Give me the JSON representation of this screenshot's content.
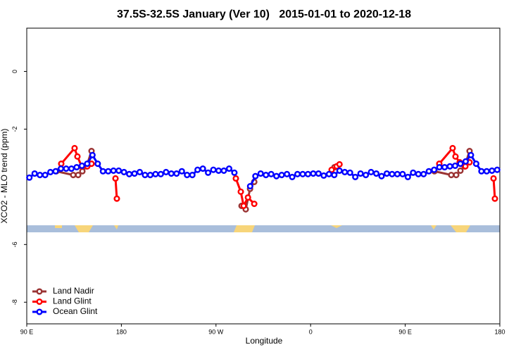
{
  "chart_data": {
    "type": "line",
    "title": "37.5S-32.5S January (Ver 10)   2015-01-01 to 2020-12-18",
    "xlabel": "Longitude",
    "ylabel": "XCO2 - MLO trend (ppm)",
    "xlim": [
      90,
      540
    ],
    "ylim": [
      -8.75,
      1.5
    ],
    "xticks": [
      {
        "value": 90,
        "label": "90 E"
      },
      180,
      {
        "value": 270,
        "label": "90 W"
      },
      {
        "value": 360,
        "label": "0"
      },
      {
        "value": 450,
        "label": "90 E"
      },
      {
        "value": 540,
        "label": "180"
      }
    ],
    "yticks": [
      0,
      -2,
      -6,
      -8
    ],
    "legend": "bottom-left",
    "series": [
      {
        "name": "Land Nadir",
        "color": "#9b3434",
        "x": [
          118.1,
          134.2,
          138.9,
          142.9,
          146.9,
          151.6,
          null,
          294.3,
          298.3,
          302.4,
          306.4,
          null,
          382.7,
          null,
          477.8,
          493.8,
          498.5,
          502.5,
          506.5,
          511.2
        ],
        "values": [
          -3.46,
          -3.59,
          -3.59,
          -3.46,
          -3.29,
          -2.76,
          null,
          -4.66,
          -4.78,
          -4.07,
          -3.83,
          null,
          -3.32,
          null,
          -3.46,
          -3.59,
          -3.59,
          -3.44,
          -3.29,
          -2.76
        ]
      },
      {
        "name": "Land Glint",
        "color": "#ff0000",
        "x": [
          122.8,
          135.5,
          138.2,
          142.2,
          147.6,
          151.6,
          null,
          174.4,
          175.7,
          null,
          288.9,
          293.6,
          296.3,
          300.4,
          306.4,
          null,
          380,
          384.8,
          387.5,
          null,
          482.4,
          495.1,
          497.8,
          501.8,
          507.2,
          511.2,
          null,
          534,
          535.3
        ],
        "values": [
          -3.2,
          -2.66,
          -2.95,
          -3.29,
          -3.29,
          -3.2,
          null,
          -3.71,
          -4.41,
          null,
          -3.71,
          -4.17,
          -4.66,
          -4.37,
          -4.59,
          null,
          -3.41,
          -3.29,
          -3.22,
          null,
          -3.2,
          -2.66,
          -2.95,
          -3.15,
          -3.29,
          -3.15,
          null,
          -3.71,
          -4.41
        ]
      },
      {
        "name": "Ocean Glint",
        "color": "#0000ff",
        "x": [
          92.5,
          97.5,
          102.5,
          107.5,
          112.5,
          117.5,
          122.5,
          127.5,
          132.5,
          137.5,
          142.5,
          147.5,
          152.5,
          157.5,
          162.5,
          167.5,
          172.5,
          177.5,
          182.5,
          187.5,
          192.5,
          197.5,
          202.5,
          207.5,
          212.5,
          217.5,
          222.5,
          227.5,
          232.5,
          237.5,
          242.5,
          247.5,
          252.5,
          257.5,
          262.5,
          267.5,
          272.5,
          277.5,
          282.5,
          287.5,
          292.5,
          297.5,
          302.5,
          307.5,
          312.5,
          317.5,
          322.5,
          327.5,
          332.5,
          337.5,
          342.5,
          347.5,
          352.5,
          357.5,
          362.5,
          367.5,
          372.5,
          377.5,
          382.5,
          387.5,
          392.5,
          397.5,
          402.5,
          407.5,
          412.5,
          417.5,
          422.5,
          427.5,
          432.5,
          437.5,
          442.5,
          447.5,
          452.5,
          457.5,
          462.5,
          467.5,
          472.5,
          477.5,
          482.5,
          487.5,
          492.5,
          497.5,
          502.5,
          507.5,
          512.5,
          517.5,
          522.5,
          527.5,
          532.5,
          537.5
        ],
        "values": [
          -3.68,
          -3.54,
          -3.59,
          -3.59,
          -3.49,
          -3.46,
          -3.37,
          -3.37,
          -3.37,
          -3.32,
          -3.27,
          -3.2,
          -2.9,
          -3.2,
          -3.46,
          -3.46,
          -3.44,
          -3.44,
          -3.49,
          -3.56,
          -3.54,
          -3.49,
          -3.59,
          -3.59,
          -3.56,
          -3.56,
          -3.49,
          -3.54,
          -3.54,
          -3.46,
          -3.59,
          -3.59,
          -3.41,
          -3.37,
          -3.51,
          -3.41,
          -3.44,
          -3.44,
          -3.37,
          -3.51,
          null,
          null,
          -3.98,
          -3.63,
          -3.54,
          -3.59,
          -3.56,
          -3.63,
          -3.59,
          -3.56,
          -3.66,
          -3.56,
          -3.56,
          -3.56,
          -3.54,
          -3.54,
          -3.61,
          -3.56,
          -3.59,
          -3.44,
          -3.49,
          -3.51,
          -3.66,
          -3.54,
          -3.59,
          -3.49,
          -3.54,
          -3.63,
          -3.54,
          -3.56,
          -3.56,
          -3.56,
          -3.66,
          -3.51,
          -3.56,
          -3.56,
          -3.46,
          -3.41,
          -3.32,
          -3.32,
          -3.29,
          -3.27,
          -3.2,
          -3.12,
          -2.9,
          -3.2,
          -3.46,
          -3.46,
          -3.44,
          -3.41
        ]
      }
    ]
  }
}
